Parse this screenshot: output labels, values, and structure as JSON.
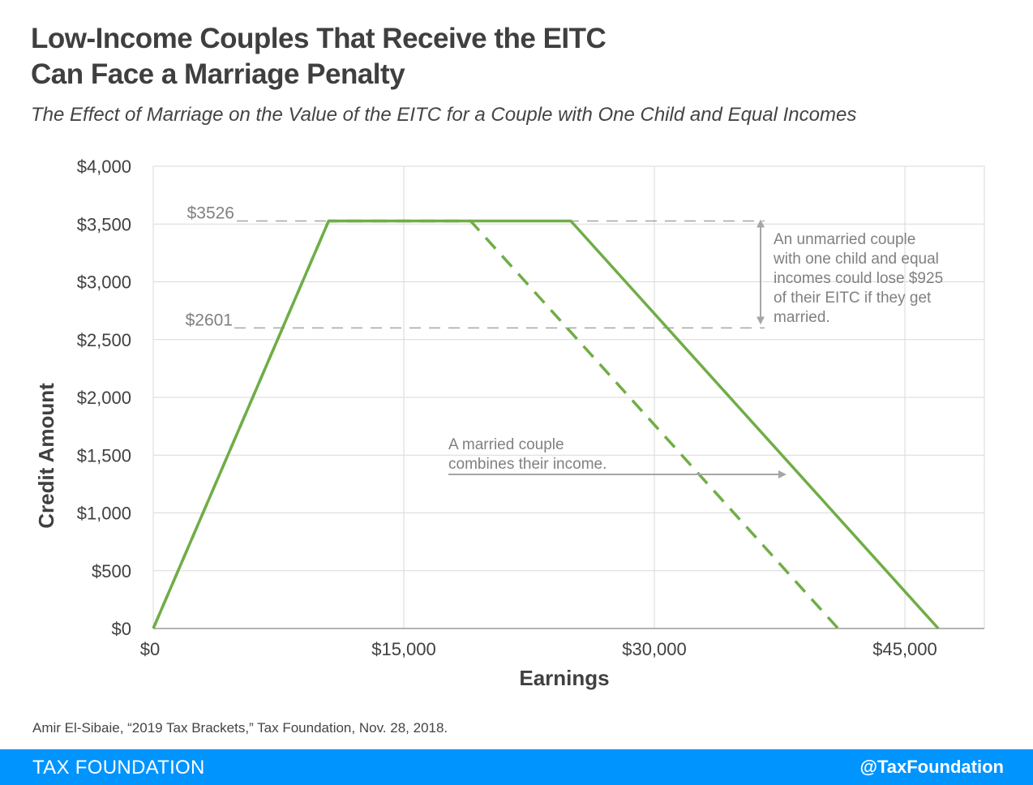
{
  "title_lines": [
    "Low-Income Couples That Receive the EITC",
    "Can Face a Marriage Penalty"
  ],
  "subtitle": "The Effect of Marriage on the Value of the EITC for a Couple with One Child and Equal Incomes",
  "source": "Amir El-Sibaie, “2019 Tax Brackets,” Tax Foundation, Nov. 28, 2018.",
  "footer": {
    "brand": "TAX FOUNDATION",
    "handle": "@TaxFoundation"
  },
  "colors": {
    "line": "#70ad47",
    "grid": "#d9d9d9",
    "annotation": "#a6a6a6",
    "footer_bg": "#0094ff"
  },
  "chart_data": {
    "type": "line",
    "xlabel": "Earnings",
    "ylabel": "Credit Amount",
    "xlim": [
      0,
      50000
    ],
    "ylim": [
      0,
      4000
    ],
    "x_ticks": [
      0,
      15000,
      30000,
      45000
    ],
    "x_tick_labels": [
      "$0",
      "$15,000",
      "$30,000",
      "$45,000"
    ],
    "y_ticks": [
      0,
      500,
      1000,
      1500,
      2000,
      2500,
      3000,
      3500,
      4000
    ],
    "y_tick_labels": [
      "$0",
      "$500",
      "$1,000",
      "$1,500",
      "$2,000",
      "$2,500",
      "$3,000",
      "$3,500",
      "$4,000"
    ],
    "grid": true,
    "legend": "none",
    "series": [
      {
        "style": "solid",
        "points": [
          [
            0,
            0
          ],
          [
            10500,
            3526
          ],
          [
            25000,
            3526
          ],
          [
            47000,
            0
          ]
        ]
      },
      {
        "style": "dashed",
        "points": [
          [
            0,
            0
          ],
          [
            10500,
            3526
          ],
          [
            19000,
            3526
          ],
          [
            41000,
            0
          ]
        ]
      }
    ],
    "reference_lines": [
      {
        "value": 3526,
        "label": "$3526",
        "x_end": 36500
      },
      {
        "value": 2601,
        "label": "$2601",
        "x_end": 36500
      }
    ],
    "annotations": [
      {
        "id": "penalty",
        "lines": [
          "An unmarried couple",
          "with one child and equal",
          "incomes could lose $925",
          "of their EITC if they get",
          "married."
        ]
      },
      {
        "id": "married",
        "lines": [
          "A married couple",
          "combines their income."
        ]
      }
    ]
  }
}
